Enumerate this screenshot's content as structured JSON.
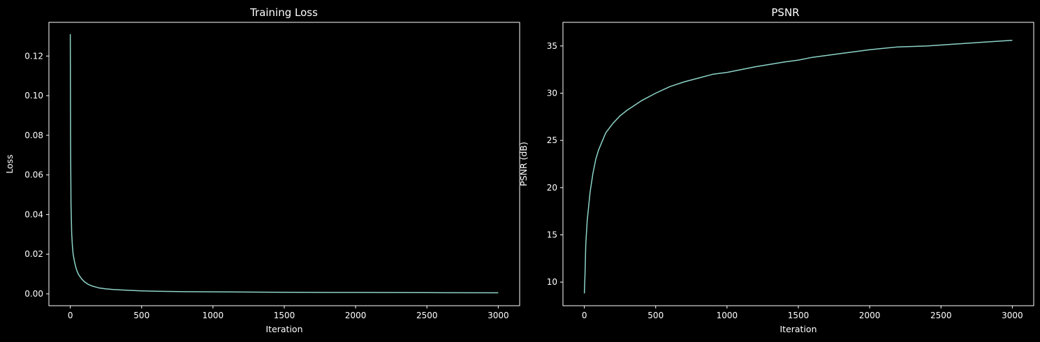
{
  "chart_data": [
    {
      "type": "line",
      "title": "Training Loss",
      "xlabel": "Iteration",
      "ylabel": "Loss",
      "xlim": [
        -150,
        3150
      ],
      "ylim": [
        -0.006,
        0.137
      ],
      "xticks": [
        0,
        500,
        1000,
        1500,
        2000,
        2500,
        3000
      ],
      "yticks": [
        0.0,
        0.02,
        0.04,
        0.06,
        0.08,
        0.1,
        0.12
      ],
      "ytick_labels": [
        "0.00",
        "0.02",
        "0.04",
        "0.06",
        "0.08",
        "0.10",
        "0.12"
      ],
      "grid": false,
      "line_color": "#8dd3c7",
      "background": "#000000",
      "series": [
        {
          "x": [
            0,
            2,
            5,
            10,
            15,
            20,
            30,
            40,
            50,
            60,
            80,
            100,
            125,
            150,
            200,
            250,
            300,
            400,
            500,
            600,
            800,
            1000,
            1200,
            1500,
            1800,
            2000,
            2500,
            3000
          ],
          "values": [
            0.131,
            0.077,
            0.045,
            0.03,
            0.024,
            0.02,
            0.016,
            0.013,
            0.011,
            0.0095,
            0.0075,
            0.006,
            0.0048,
            0.004,
            0.003,
            0.0025,
            0.0022,
            0.0018,
            0.0015,
            0.0013,
            0.0011,
            0.001,
            0.0009,
            0.0008,
            0.0007,
            0.0007,
            0.0006,
            0.0005
          ]
        }
      ]
    },
    {
      "type": "line",
      "title": "PSNR",
      "xlabel": "Iteration",
      "ylabel": "PSNR (dB)",
      "xlim": [
        -150,
        3150
      ],
      "ylim": [
        7.5,
        37.5
      ],
      "xticks": [
        0,
        500,
        1000,
        1500,
        2000,
        2500,
        3000
      ],
      "yticks": [
        10,
        15,
        20,
        25,
        30,
        35
      ],
      "ytick_labels": [
        "10",
        "15",
        "20",
        "25",
        "30",
        "35"
      ],
      "grid": false,
      "line_color": "#8dd3c7",
      "background": "#000000",
      "series": [
        {
          "x": [
            0,
            5,
            10,
            20,
            30,
            40,
            50,
            60,
            80,
            100,
            150,
            200,
            250,
            300,
            400,
            500,
            600,
            700,
            800,
            900,
            1000,
            1200,
            1400,
            1500,
            1600,
            1800,
            2000,
            2200,
            2400,
            2600,
            2800,
            3000
          ],
          "values": [
            8.8,
            11.0,
            14.0,
            16.5,
            18.0,
            19.5,
            20.5,
            21.5,
            23.0,
            24.0,
            25.8,
            26.8,
            27.6,
            28.2,
            29.2,
            30.0,
            30.7,
            31.2,
            31.6,
            32.0,
            32.2,
            32.8,
            33.3,
            33.5,
            33.8,
            34.2,
            34.6,
            34.9,
            35.0,
            35.2,
            35.4,
            35.6
          ]
        }
      ]
    }
  ]
}
